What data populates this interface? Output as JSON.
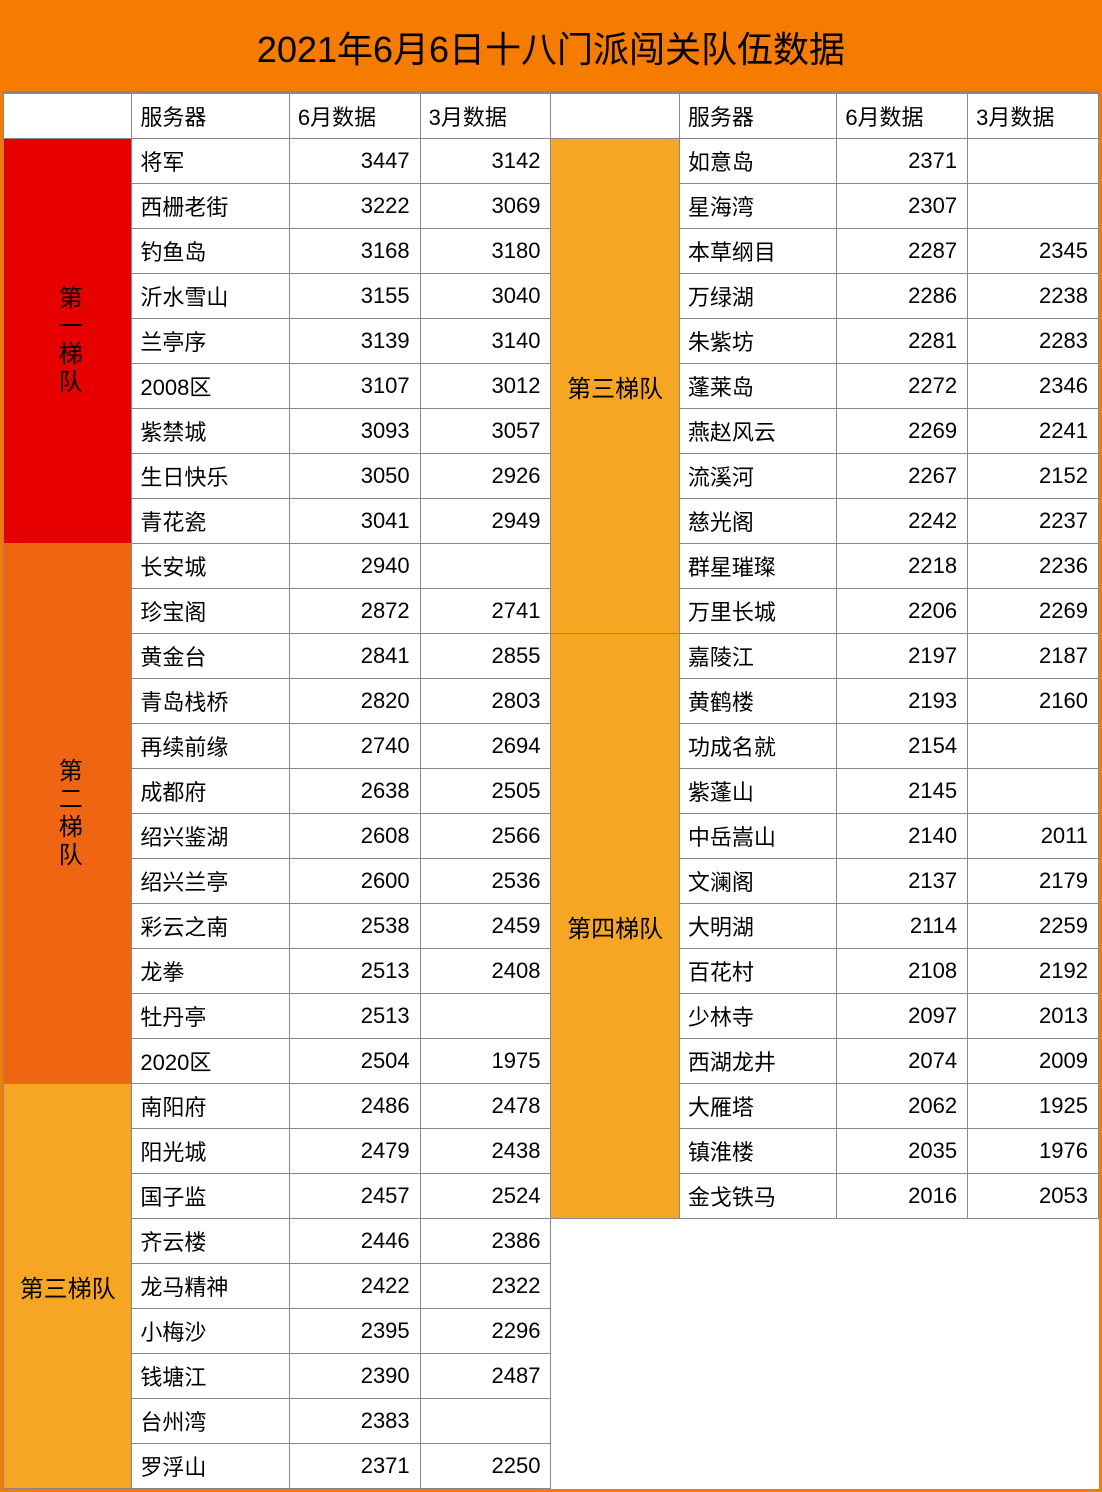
{
  "title": "2021年6月6日十八门派闯关队伍数据",
  "colors": {
    "title_bg": "#f57c00",
    "tier1_bg": "#e60000",
    "tier2_bg": "#f06511",
    "tier3_bg": "#f6a623",
    "tier4_bg": "#f6a623",
    "border": "#888888",
    "cell_bg": "#ffffff"
  },
  "headers": {
    "server": "服务器",
    "june": "6月数据",
    "march": "3月数据"
  },
  "tiers": {
    "t1": "第一梯队",
    "t2": "第二梯队",
    "t3": "第三梯队",
    "t4": "第四梯队"
  },
  "left_rows": [
    {
      "tier": "t1",
      "server": "将军",
      "jun": "3447",
      "mar": "3142"
    },
    {
      "tier": "t1",
      "server": "西栅老街",
      "jun": "3222",
      "mar": "3069"
    },
    {
      "tier": "t1",
      "server": "钓鱼岛",
      "jun": "3168",
      "mar": "3180"
    },
    {
      "tier": "t1",
      "server": "沂水雪山",
      "jun": "3155",
      "mar": "3040"
    },
    {
      "tier": "t1",
      "server": "兰亭序",
      "jun": "3139",
      "mar": "3140"
    },
    {
      "tier": "t1",
      "server": "2008区",
      "jun": "3107",
      "mar": "3012"
    },
    {
      "tier": "t1",
      "server": "紫禁城",
      "jun": "3093",
      "mar": "3057"
    },
    {
      "tier": "t1",
      "server": "生日快乐",
      "jun": "3050",
      "mar": "2926"
    },
    {
      "tier": "t1",
      "server": "青花瓷",
      "jun": "3041",
      "mar": "2949"
    },
    {
      "tier": "t2",
      "server": "长安城",
      "jun": "2940",
      "mar": ""
    },
    {
      "tier": "t2",
      "server": "珍宝阁",
      "jun": "2872",
      "mar": "2741"
    },
    {
      "tier": "t2",
      "server": "黄金台",
      "jun": "2841",
      "mar": "2855"
    },
    {
      "tier": "t2",
      "server": "青岛栈桥",
      "jun": "2820",
      "mar": "2803"
    },
    {
      "tier": "t2",
      "server": "再续前缘",
      "jun": "2740",
      "mar": "2694"
    },
    {
      "tier": "t2",
      "server": "成都府",
      "jun": "2638",
      "mar": "2505"
    },
    {
      "tier": "t2",
      "server": "绍兴鉴湖",
      "jun": "2608",
      "mar": "2566"
    },
    {
      "tier": "t2",
      "server": "绍兴兰亭",
      "jun": "2600",
      "mar": "2536"
    },
    {
      "tier": "t2",
      "server": "彩云之南",
      "jun": "2538",
      "mar": "2459"
    },
    {
      "tier": "t2",
      "server": "龙拳",
      "jun": "2513",
      "mar": "2408"
    },
    {
      "tier": "t2",
      "server": "牡丹亭",
      "jun": "2513",
      "mar": ""
    },
    {
      "tier": "t2",
      "server": "2020区",
      "jun": "2504",
      "mar": "1975"
    },
    {
      "tier": "t3",
      "server": "南阳府",
      "jun": "2486",
      "mar": "2478"
    },
    {
      "tier": "t3",
      "server": "阳光城",
      "jun": "2479",
      "mar": "2438"
    },
    {
      "tier": "t3",
      "server": "国子监",
      "jun": "2457",
      "mar": "2524"
    },
    {
      "tier": "t3",
      "server": "齐云楼",
      "jun": "2446",
      "mar": "2386"
    },
    {
      "tier": "t3",
      "server": "龙马精神",
      "jun": "2422",
      "mar": "2322"
    },
    {
      "tier": "t3",
      "server": "小梅沙",
      "jun": "2395",
      "mar": "2296"
    },
    {
      "tier": "t3",
      "server": "钱塘江",
      "jun": "2390",
      "mar": "2487"
    },
    {
      "tier": "t3",
      "server": "台州湾",
      "jun": "2383",
      "mar": ""
    },
    {
      "tier": "t3",
      "server": "罗浮山",
      "jun": "2371",
      "mar": "2250"
    }
  ],
  "right_rows": [
    {
      "tier": "t3",
      "server": "如意岛",
      "jun": "2371",
      "mar": ""
    },
    {
      "tier": "t3",
      "server": "星海湾",
      "jun": "2307",
      "mar": ""
    },
    {
      "tier": "t3",
      "server": "本草纲目",
      "jun": "2287",
      "mar": "2345"
    },
    {
      "tier": "t3",
      "server": "万绿湖",
      "jun": "2286",
      "mar": "2238"
    },
    {
      "tier": "t3",
      "server": "朱紫坊",
      "jun": "2281",
      "mar": "2283"
    },
    {
      "tier": "t3",
      "server": "蓬莱岛",
      "jun": "2272",
      "mar": "2346"
    },
    {
      "tier": "t3",
      "server": "燕赵风云",
      "jun": "2269",
      "mar": "2241"
    },
    {
      "tier": "t3",
      "server": "流溪河",
      "jun": "2267",
      "mar": "2152"
    },
    {
      "tier": "t3",
      "server": "慈光阁",
      "jun": "2242",
      "mar": "2237"
    },
    {
      "tier": "t3",
      "server": "群星璀璨",
      "jun": "2218",
      "mar": "2236"
    },
    {
      "tier": "t3",
      "server": "万里长城",
      "jun": "2206",
      "mar": "2269"
    },
    {
      "tier": "t4",
      "server": "嘉陵江",
      "jun": "2197",
      "mar": "2187"
    },
    {
      "tier": "t4",
      "server": "黄鹤楼",
      "jun": "2193",
      "mar": "2160"
    },
    {
      "tier": "t4",
      "server": "功成名就",
      "jun": "2154",
      "mar": ""
    },
    {
      "tier": "t4",
      "server": "紫蓬山",
      "jun": "2145",
      "mar": ""
    },
    {
      "tier": "t4",
      "server": "中岳嵩山",
      "jun": "2140",
      "mar": "2011"
    },
    {
      "tier": "t4",
      "server": "文澜阁",
      "jun": "2137",
      "mar": "2179"
    },
    {
      "tier": "t4",
      "server": "大明湖",
      "jun": "2114",
      "mar": "2259"
    },
    {
      "tier": "t4",
      "server": "百花村",
      "jun": "2108",
      "mar": "2192"
    },
    {
      "tier": "t4",
      "server": "少林寺",
      "jun": "2097",
      "mar": "2013"
    },
    {
      "tier": "t4",
      "server": "西湖龙井",
      "jun": "2074",
      "mar": "2009"
    },
    {
      "tier": "t4",
      "server": "大雁塔",
      "jun": "2062",
      "mar": "1925"
    },
    {
      "tier": "t4",
      "server": "镇淮楼",
      "jun": "2035",
      "mar": "1976"
    },
    {
      "tier": "t4",
      "server": "金戈铁马",
      "jun": "2016",
      "mar": "2053"
    }
  ],
  "tier_spans": {
    "left": [
      {
        "tier": "t1",
        "span": 9
      },
      {
        "tier": "t2",
        "span": 12
      },
      {
        "tier": "t3",
        "span": 9
      }
    ],
    "right": [
      {
        "tier": "t3",
        "span": 11
      },
      {
        "tier": "t4",
        "span": 13
      }
    ]
  },
  "tier_colors": {
    "t1": "#e60000",
    "t2": "#f06511",
    "t3": "#f6a623",
    "t4": "#f6a623"
  }
}
